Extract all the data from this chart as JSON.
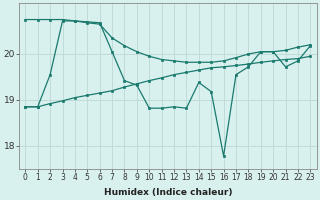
{
  "xlabel": "Humidex (Indice chaleur)",
  "x": [
    0,
    1,
    2,
    3,
    4,
    5,
    6,
    7,
    8,
    9,
    10,
    11,
    12,
    13,
    14,
    15,
    16,
    17,
    18,
    19,
    20,
    21,
    22,
    23
  ],
  "line_max": [
    20.75,
    20.75,
    20.75,
    20.75,
    20.72,
    20.68,
    20.65,
    20.35,
    20.18,
    20.05,
    19.95,
    19.88,
    19.85,
    19.82,
    19.82,
    19.82,
    19.85,
    19.92,
    20.0,
    20.05,
    20.05,
    20.08,
    20.15,
    20.2
  ],
  "line_min": [
    18.85,
    18.85,
    18.92,
    18.98,
    19.05,
    19.1,
    19.15,
    19.2,
    19.28,
    19.35,
    19.42,
    19.48,
    19.55,
    19.6,
    19.65,
    19.7,
    19.72,
    19.75,
    19.78,
    19.82,
    19.85,
    19.88,
    19.9,
    19.95
  ],
  "line_val": [
    18.85,
    18.85,
    19.55,
    20.72,
    20.72,
    20.7,
    20.68,
    20.05,
    19.42,
    19.32,
    18.82,
    18.82,
    18.85,
    18.82,
    19.38,
    19.18,
    17.78,
    19.55,
    19.72,
    20.05,
    20.05,
    19.72,
    19.85,
    20.18
  ],
  "line_color": "#1a7a6e",
  "bg_color": "#d8f0ee",
  "grid_color": "#c0dbd8",
  "ylim": [
    17.5,
    21.1
  ],
  "xlim": [
    -0.5,
    23.5
  ],
  "yticks": [
    18,
    19,
    20
  ],
  "xticks": [
    0,
    1,
    2,
    3,
    4,
    5,
    6,
    7,
    8,
    9,
    10,
    11,
    12,
    13,
    14,
    15,
    16,
    17,
    18,
    19,
    20,
    21,
    22,
    23
  ],
  "xlabel_fontsize": 6.5,
  "tick_fontsize": 5.5,
  "ytick_fontsize": 6.5,
  "lw": 0.9,
  "ms": 2.0
}
